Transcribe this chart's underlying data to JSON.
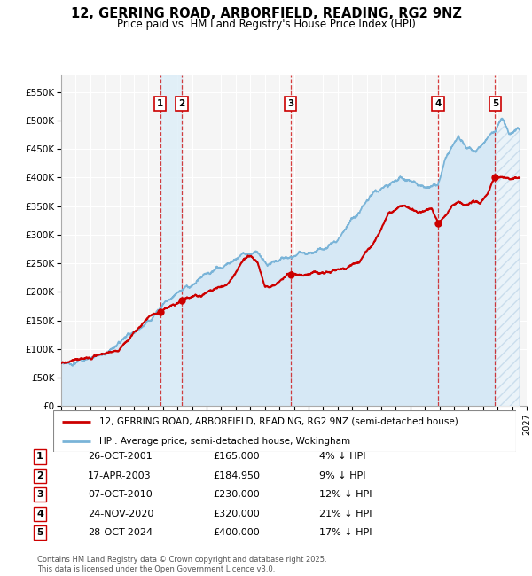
{
  "title": "12, GERRING ROAD, ARBORFIELD, READING, RG2 9NZ",
  "subtitle": "Price paid vs. HM Land Registry's House Price Index (HPI)",
  "yticks": [
    0,
    50000,
    100000,
    150000,
    200000,
    250000,
    300000,
    350000,
    400000,
    450000,
    500000,
    550000
  ],
  "ytick_labels": [
    "£0",
    "£50K",
    "£100K",
    "£150K",
    "£200K",
    "£250K",
    "£300K",
    "£350K",
    "£400K",
    "£450K",
    "£500K",
    "£550K"
  ],
  "ylim": [
    0,
    580000
  ],
  "xlim_start": 1995.0,
  "xlim_end": 2027.0,
  "hpi_color": "#7ab4d8",
  "price_color": "#cc0000",
  "sale_marker_color": "#cc0000",
  "vline_color": "#cc0000",
  "hpi_fill_color": "#d6e8f5",
  "shade_between_sales_color": "#ddeef8",
  "sales": [
    {
      "label": "1",
      "year": 2001.82,
      "price": 165000,
      "date": "26-OCT-2001",
      "pct": "4%",
      "dir": "↓"
    },
    {
      "label": "2",
      "year": 2003.29,
      "price": 184950,
      "date": "17-APR-2003",
      "pct": "9%",
      "dir": "↓"
    },
    {
      "label": "3",
      "year": 2010.77,
      "price": 230000,
      "date": "07-OCT-2010",
      "pct": "12%",
      "dir": "↓"
    },
    {
      "label": "4",
      "year": 2020.9,
      "price": 320000,
      "date": "24-NOV-2020",
      "pct": "21%",
      "dir": "↓"
    },
    {
      "label": "5",
      "year": 2024.83,
      "price": 400000,
      "date": "28-OCT-2024",
      "pct": "17%",
      "dir": "↓"
    }
  ],
  "legend_line1": "12, GERRING ROAD, ARBORFIELD, READING, RG2 9NZ (semi-detached house)",
  "legend_line2": "HPI: Average price, semi-detached house, Wokingham",
  "footer": "Contains HM Land Registry data © Crown copyright and database right 2025.\nThis data is licensed under the Open Government Licence v3.0.",
  "table_rows": [
    [
      "1",
      "26-OCT-2001",
      "£165,000",
      "4% ↓ HPI"
    ],
    [
      "2",
      "17-APR-2003",
      "£184,950",
      "9% ↓ HPI"
    ],
    [
      "3",
      "07-OCT-2010",
      "£230,000",
      "12% ↓ HPI"
    ],
    [
      "4",
      "24-NOV-2020",
      "£320,000",
      "21% ↓ HPI"
    ],
    [
      "5",
      "28-OCT-2024",
      "£400,000",
      "17% ↓ HPI"
    ]
  ]
}
